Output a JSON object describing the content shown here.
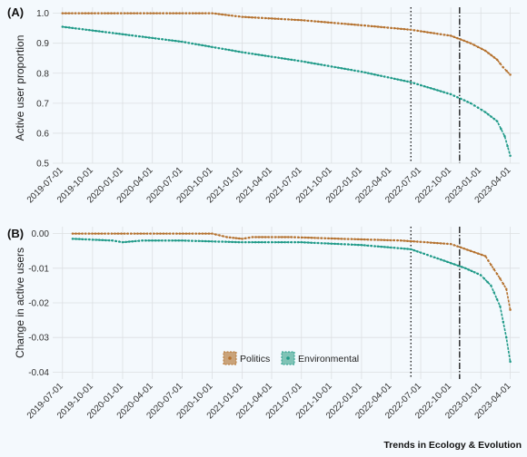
{
  "footer": {
    "credit": "Trends in Ecology & Evolution"
  },
  "colors": {
    "politics": "#b5722f",
    "environmental": "#1f9a88",
    "grid": "#dcdfe2",
    "background": "#f4f9fd"
  },
  "chart_data": [
    {
      "panel_label": "(A)",
      "type": "line",
      "ylabel": "Active user proportion",
      "xlabel": "",
      "ylim": [
        0.5,
        1.02
      ],
      "yticks": [
        "0.5",
        "0.6",
        "0.7",
        "0.8",
        "0.9",
        "1.0"
      ],
      "x_tick_labels": [
        "2019-07-01",
        "2019-10-01",
        "2020-01-01",
        "2020-04-01",
        "2020-07-01",
        "2020-10-01",
        "2021-01-01",
        "2021-04-01",
        "2021-07-01",
        "2021-10-01",
        "2022-01-01",
        "2022-04-01",
        "2022-07-01",
        "2022-10-01",
        "2023-01-01",
        "2023-04-01"
      ],
      "vlines": [
        {
          "date": "2022-06-01",
          "style": "dotted"
        },
        {
          "date": "2022-10-28",
          "style": "dashdot"
        }
      ],
      "grid": true,
      "series": [
        {
          "name": "Politics",
          "points": [
            [
              "2019-07-01",
              1.0
            ],
            [
              "2020-10-01",
              1.0
            ],
            [
              "2021-01-01",
              0.988
            ],
            [
              "2021-07-01",
              0.977
            ],
            [
              "2022-01-01",
              0.96
            ],
            [
              "2022-06-01",
              0.945
            ],
            [
              "2022-10-01",
              0.925
            ],
            [
              "2022-12-01",
              0.9
            ],
            [
              "2023-01-15",
              0.875
            ],
            [
              "2023-02-20",
              0.845
            ],
            [
              "2023-03-10",
              0.82
            ],
            [
              "2023-04-01",
              0.795
            ]
          ]
        },
        {
          "name": "Environmental",
          "points": [
            [
              "2019-07-01",
              0.955
            ],
            [
              "2020-01-01",
              0.93
            ],
            [
              "2020-07-01",
              0.905
            ],
            [
              "2021-01-01",
              0.87
            ],
            [
              "2021-07-01",
              0.84
            ],
            [
              "2022-01-01",
              0.805
            ],
            [
              "2022-06-01",
              0.77
            ],
            [
              "2022-10-01",
              0.73
            ],
            [
              "2022-12-01",
              0.7
            ],
            [
              "2023-01-15",
              0.67
            ],
            [
              "2023-02-20",
              0.64
            ],
            [
              "2023-03-15",
              0.59
            ],
            [
              "2023-04-01",
              0.525
            ]
          ]
        }
      ]
    },
    {
      "panel_label": "(B)",
      "type": "line",
      "ylabel": "Change in active users",
      "xlabel": "",
      "ylim": [
        -0.042,
        0.002
      ],
      "yticks": [
        "-0.04",
        "-0.03",
        "-0.02",
        "-0.01",
        "0.00"
      ],
      "x_tick_labels": [
        "2019-07-01",
        "2019-10-01",
        "2020-01-01",
        "2020-04-01",
        "2020-07-01",
        "2020-10-01",
        "2021-01-01",
        "2021-04-01",
        "2021-07-01",
        "2021-10-01",
        "2022-01-01",
        "2022-04-01",
        "2022-07-01",
        "2022-10-01",
        "2023-01-01",
        "2023-04-01"
      ],
      "vlines": [
        {
          "date": "2022-06-01",
          "style": "dotted"
        },
        {
          "date": "2022-10-28",
          "style": "dashdot"
        }
      ],
      "grid": true,
      "legend": {
        "position": "bottom-center",
        "entries": [
          "Politics",
          "Environmental"
        ]
      },
      "series": [
        {
          "name": "Politics",
          "points": [
            [
              "2019-08-01",
              0.0
            ],
            [
              "2020-10-01",
              0.0
            ],
            [
              "2020-11-15",
              -0.001
            ],
            [
              "2021-01-01",
              -0.0015
            ],
            [
              "2021-02-01",
              -0.001
            ],
            [
              "2021-06-01",
              -0.001
            ],
            [
              "2021-11-01",
              -0.0015
            ],
            [
              "2022-05-01",
              -0.002
            ],
            [
              "2022-10-01",
              -0.003
            ],
            [
              "2022-12-01",
              -0.005
            ],
            [
              "2023-01-15",
              -0.0065
            ],
            [
              "2023-02-01",
              -0.009
            ],
            [
              "2023-03-01",
              -0.013
            ],
            [
              "2023-03-20",
              -0.016
            ],
            [
              "2023-04-01",
              -0.022
            ]
          ]
        },
        {
          "name": "Environmental",
          "points": [
            [
              "2019-08-01",
              -0.0015
            ],
            [
              "2019-12-01",
              -0.002
            ],
            [
              "2020-01-01",
              -0.0025
            ],
            [
              "2020-03-01",
              -0.002
            ],
            [
              "2020-07-01",
              -0.002
            ],
            [
              "2021-01-01",
              -0.0025
            ],
            [
              "2021-07-01",
              -0.0025
            ],
            [
              "2022-01-01",
              -0.0033
            ],
            [
              "2022-06-01",
              -0.0045
            ],
            [
              "2022-10-01",
              -0.0085
            ],
            [
              "2022-11-15",
              -0.01
            ],
            [
              "2023-01-01",
              -0.012
            ],
            [
              "2023-02-01",
              -0.015
            ],
            [
              "2023-03-01",
              -0.021
            ],
            [
              "2023-03-20",
              -0.03
            ],
            [
              "2023-04-01",
              -0.037
            ]
          ]
        }
      ]
    }
  ]
}
